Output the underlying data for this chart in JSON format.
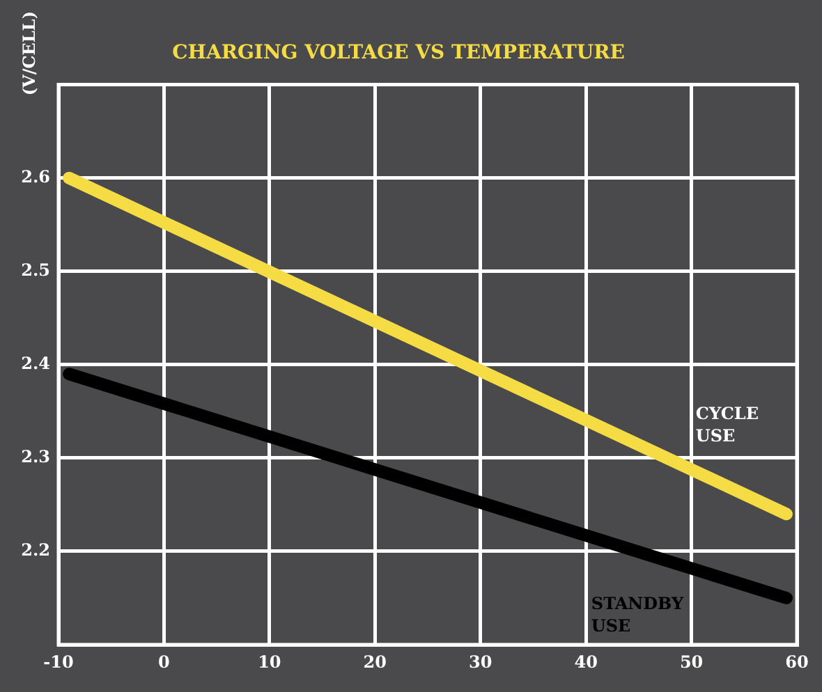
{
  "chart_data": {
    "type": "line",
    "title": "CHARGING VOLTAGE VS TEMPERATURE",
    "ylabel": "(V/CELL)",
    "x": [
      -9,
      59
    ],
    "series": [
      {
        "name": "CYCLE USE",
        "color": "#f5dc45",
        "values": [
          2.6,
          2.24
        ]
      },
      {
        "name": "STANDBY USE",
        "color": "#000000",
        "values": [
          2.39,
          2.15
        ]
      }
    ],
    "xlim": [
      -10,
      60
    ],
    "xticks": [
      -10,
      0,
      10,
      20,
      30,
      40,
      50,
      60
    ],
    "ylim": [
      2.1,
      2.7
    ],
    "yticks": [
      2.2,
      2.3,
      2.4,
      2.5,
      2.6
    ],
    "grid": true,
    "legend": false,
    "marker": "none",
    "line_style": "solid"
  }
}
